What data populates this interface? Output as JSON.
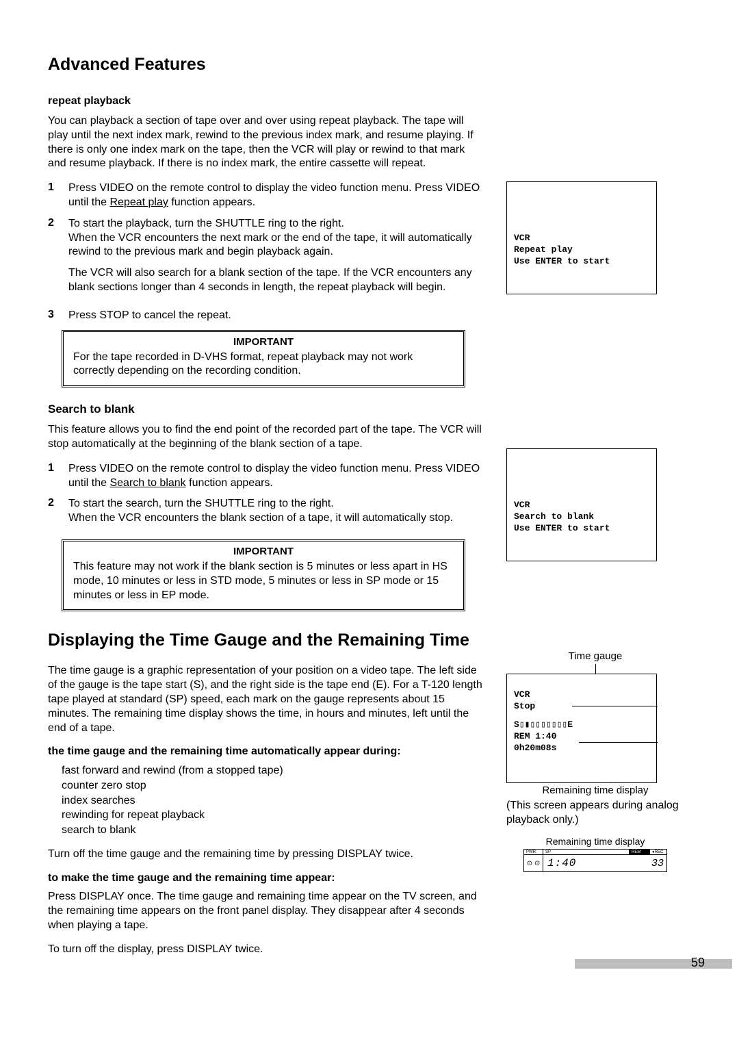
{
  "page_number": "59",
  "colors": {
    "text": "#000000",
    "background": "#ffffff",
    "grey_bar": "#bdbdbd"
  },
  "typography": {
    "body_font": "Arial",
    "mono_font": "Courier New",
    "heading_size_pt": 25,
    "body_size_pt": 16
  },
  "heading": "Advanced Features",
  "repeat": {
    "title": "repeat playback",
    "intro": "You can playback a section of tape over and over using repeat playback.  The tape will play until the next index mark, rewind to the previous index mark, and resume playing.  If there is only one index mark on the tape, then the VCR will play or rewind to that mark and resume playback.  If there is no index mark, the entire cassette will repeat.",
    "steps": [
      {
        "n": "1",
        "html": "Press VIDEO on the remote control to display the video function menu.  Press VIDEO until the <span class=\"underline\">Repeat play</span> function appears."
      },
      {
        "n": "2",
        "html": "To start the playback, turn the SHUTTLE ring to the right.<p>When the VCR encounters the next mark or the end of the tape, it will automatically rewind to the previous mark and begin playback again.</p><p>The VCR will also search for a blank section of the tape.  If the VCR encounters any blank sections longer than 4 seconds in length, the repeat playback will begin.</p>"
      },
      {
        "n": "3",
        "html": "Press STOP to cancel the repeat."
      }
    ],
    "important_title": "IMPORTANT",
    "important_text": "For the tape recorded in D-VHS format, repeat playback may not work correctly depending on the recording condition."
  },
  "search": {
    "title": "Search to blank",
    "intro": "This feature allows you to find the end point of the recorded part of the tape.  The VCR will stop automatically at the beginning of the blank section of a tape.",
    "steps": [
      {
        "n": "1",
        "html": "Press VIDEO on the remote control to display the video function menu.  Press VIDEO until the <span class=\"underline\">Search to blank</span> function appears."
      },
      {
        "n": "2",
        "html": "To start the search, turn the SHUTTLE ring to the right.<p>When the VCR encounters the blank section of a tape, it will automatically stop.</p>"
      }
    ],
    "important_title": "IMPORTANT",
    "important_text": "This feature may not work if the blank section is 5 minutes or less apart in HS mode, 10 minutes or less in STD mode, 5 minutes or less in SP mode or 15 minutes or less in EP mode."
  },
  "timegauge": {
    "heading": "Displaying the Time Gauge and the Remaining Time",
    "intro": "The time gauge is a graphic representation of your position on a video tape.  The left side of the gauge is the tape start (S), and the right side is the tape end (E).  For a T-120 length tape played at standard (SP) speed, each mark on the gauge represents about 15 minutes.  The remaining time display shows the time, in hours and minutes, left until the end of a tape.",
    "list_title": "the time gauge and the remaining time automatically appear during:",
    "list": "fast forward and rewind (from a stopped tape)\ncounter zero stop\nindex searches\nrewinding for repeat playback\nsearch to blank",
    "after_list": "Turn off the time gauge and the remaining time by pressing DISPLAY twice.",
    "make_title": "to make the time gauge and the remaining time appear:",
    "make_text": "Press DISPLAY once.  The time gauge and remaining time appear on the TV screen, and the remaining time appears on the front panel display.  They disappear after 4 seconds when playing a tape.",
    "turnoff": "To turn off the display, press DISPLAY twice."
  },
  "screens": {
    "repeat": {
      "l1": "VCR",
      "l2": "Repeat play",
      "l3": "Use ENTER to start"
    },
    "search": {
      "l1": "VCR",
      "l2": "Search to blank",
      "l3": "Use ENTER to start"
    },
    "gauge": {
      "label": "Time gauge",
      "l1": "VCR",
      "l2": "Stop",
      "bar": "S▯▮▯▯▯▯▯▯▯E",
      "rem": " REM  1:40",
      "elapsed": "  0h20m08s",
      "caption": "Remaining time display",
      "note": "(This screen appears during analog playback only.)"
    },
    "lcd": {
      "caption": "Remaining time display",
      "pwr": "PWR.",
      "sp": "SP",
      "rem": "REM",
      "time": "1:40",
      "ch": "33",
      "rec": "●REC"
    }
  }
}
